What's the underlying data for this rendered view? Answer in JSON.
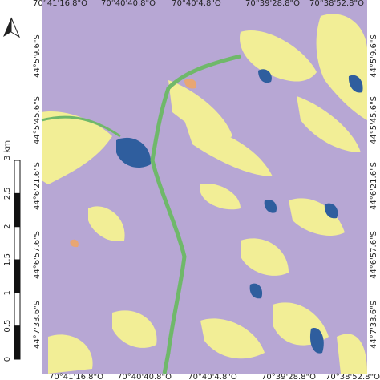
{
  "map": {
    "top_labels": [
      "70°41'16.8\"O",
      "70°40'40.8\"O",
      "70°40'4.8\"O",
      "70°39'28.8\"O",
      "70°38'52.8\"O"
    ],
    "bottom_labels": [
      "70°41'16.8\"O",
      "70°40'40.8\"O",
      "70°40'4.8\"O",
      "70°39'28.8\"O",
      "70°38'52.8\"O"
    ],
    "left_labels": [
      "44°5'9.6\"S",
      "44°5'45.6\"S",
      "44°6'21.6\"S",
      "44°6'57.6\"S",
      "44°7'33.6\"S"
    ],
    "right_labels": [
      "44°5'9.6\"S",
      "44°5'45.6\"S",
      "44°6'21.6\"S",
      "44°6'57.6\"S",
      "44°7'33.6\"S"
    ],
    "scale_labels": [
      "0",
      "0.5",
      "1",
      "1.5",
      "2",
      "2.5",
      "3 km"
    ]
  }
}
